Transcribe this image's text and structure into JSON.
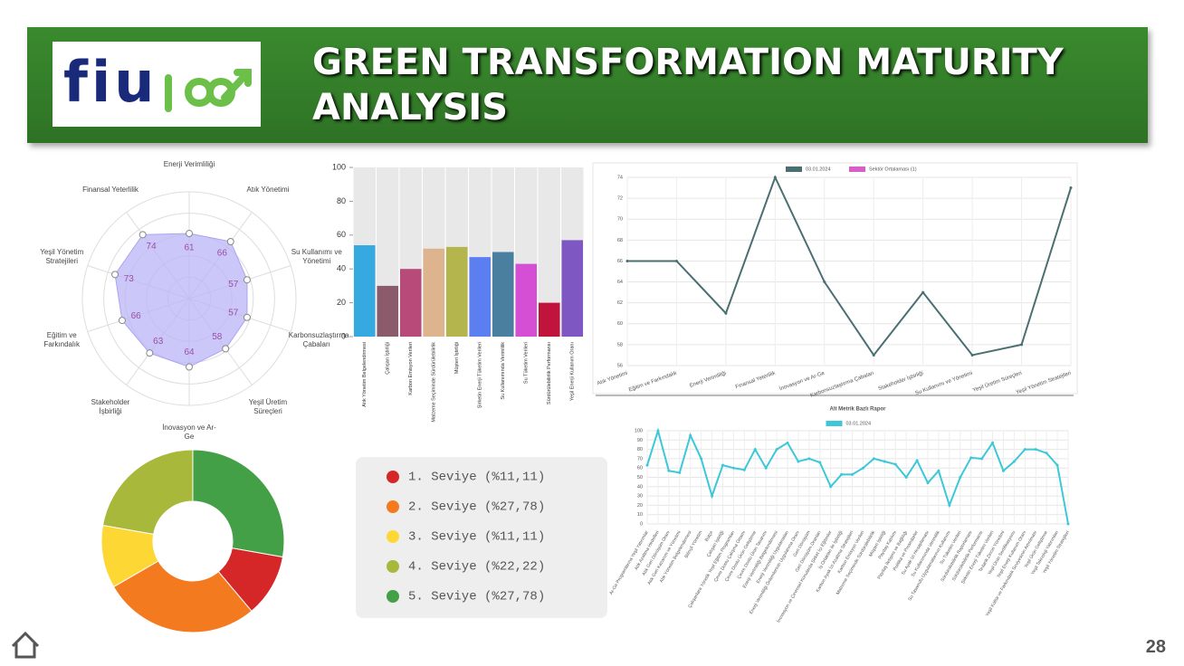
{
  "header": {
    "logo": "fiu",
    "title": "GREEN TRANSFORMATION MATURITY ANALYSIS"
  },
  "page_number": "28",
  "chart_data": [
    {
      "type": "radar",
      "categories": [
        "Enerji Verimliliği",
        "Atık Yönetimi",
        "Su Kullanımı ve Yönetimi",
        "Karbonsuzlaştırma Çabaları",
        "Yeşil Üretim Süreçleri",
        "İnovasyon ve Ar-Ge",
        "Stakeholder İşbirliği",
        "Eğitim ve Farkındalık",
        "Yeşil Yönetim Stratejileri",
        "Finansal Yeterlilik"
      ],
      "values": [
        61,
        66,
        57,
        57,
        58,
        64,
        63,
        66,
        73,
        74
      ],
      "color": "#b9b6f7",
      "rlim": [
        0,
        100
      ]
    },
    {
      "type": "bar",
      "categories": [
        "Atık Yönetim Belgelendirmesi",
        "Çalışan İştirliği",
        "Karbon Emisyon Verileri",
        "Malzeme Seçiminde Sürdürülebilirlik",
        "Müşteri İştirliği",
        "Şirketin Enerji Tüketim Verileri",
        "Su Kullanımında Verimlilik",
        "Su Tüketim Verileri",
        "Sürdürülebilirlik Performansı",
        "Yeşil Enerji Kullanım Oranı"
      ],
      "values": [
        54,
        30,
        40,
        52,
        53,
        47,
        50,
        43,
        20,
        57
      ],
      "colors": [
        "#36a9e1",
        "#8b5a6b",
        "#b84a7a",
        "#deb48e",
        "#b5b54e",
        "#5b7ff0",
        "#4a7fa0",
        "#d44fd4",
        "#c0143c",
        "#7e57c2"
      ],
      "ylim": [
        0,
        100
      ],
      "yticks": [
        0,
        20,
        40,
        60,
        80,
        100
      ]
    },
    {
      "type": "line",
      "categories": [
        "Atık Yönetimi",
        "Eğitim ve Farkındalık",
        "Enerji Verimliliği",
        "Finansal Yeterlilik",
        "İnovasyon ve Ar-Ge",
        "Karbonsuzlaştırma Çabaları",
        "Stakeholder İşbirliği",
        "Su Kullanımı ve Yönetimi",
        "Yeşil Üretim Süreçleri",
        "Yeşil Yönetim Stratejileri"
      ],
      "series": [
        {
          "name": "03.01.2024",
          "color": "#4a6f72",
          "values": [
            66,
            66,
            61,
            74,
            64,
            57,
            63,
            57,
            58,
            73
          ]
        },
        {
          "name": "Sektör Ortalaması (1)",
          "color": "#d660c8",
          "values": [
            null,
            null,
            null,
            null,
            null,
            null,
            null,
            null,
            null,
            null
          ]
        }
      ],
      "ylim": [
        56,
        74
      ],
      "yticks": [
        56,
        58,
        60,
        62,
        64,
        66,
        68,
        70,
        72,
        74
      ],
      "grid": true
    },
    {
      "type": "line",
      "title": "Alt Metrik Bazlı Rapor",
      "categories": [
        "Ar-Ge Programlarına Yeşil Yatırımlar",
        "Atık Azaltma Hedefleri",
        "Atık Geri Dönüşüm Oranı",
        "Atık Geri Kazanım ve Yönetimi",
        "Atık Yönetim Belgelendirmesi",
        "Bilinçli Yönetim",
        "Bütçe",
        "Çalışan İştirliği",
        "Çalışanlara Yönelik Yeşil Eğitim Programları",
        "Çevre Dostu Çalışma Ortamı",
        "Çevre Dostu Ürün Geliştirme",
        "Çevre Dostu Ürün Tasarımı",
        "Enerji Verimliliği Belgelendirmesi",
        "Enerji Verimliliği Uygulamaları",
        "Enerji Verimliliği Önlemlerinin Uygulanma Oranı",
        "Geri Dönüşüm",
        "Geri Dönüşüm Oranları",
        "İnovasyon ve Çevresel Konularda Şirket İçi Eğitimler",
        "İş Ortakları ile İşbirliği",
        "Karbon Ayak İzi Azaltma Stratejileri",
        "Karbon Emisyon Verileri",
        "Malzeme Seçiminde Sürdürülebilirlik",
        "Müşteri İştirliği",
        "Paydaş Katılımı",
        "Paydaş İletişimi ve Bağlılığı",
        "Politika ve Prosedürler",
        "Su Ayak İzi Hesaplaması",
        "Su Kullanımında Verimlilik",
        "Su Tasarrufu Uygulamalarının Kullanımı",
        "Su Tüketim Verileri",
        "Sürdürülebilirlik Raporlaması",
        "Sürdürülebilirlik Performansı",
        "Şirketin Enerji Tüketim Verileri",
        "Tedarik Zinciri Yönetimi",
        "Yeşil Ürün Sertifikasyonu",
        "Yeşil Enerji Kullanım Oranı",
        "Yeşil Kültür ve Farkındalık Seviyesinin Artırılması",
        "Yeşil Ürün Geliştirme",
        "Yeşil Teknoloji Yatırımları",
        "Yeşil Yönetim Stratejileri"
      ],
      "series": [
        {
          "name": "03.01.2024",
          "color": "#3cc8d8",
          "values": [
            63,
            100,
            57,
            55,
            95,
            70,
            30,
            63,
            60,
            58,
            80,
            60,
            80,
            87,
            67,
            70,
            66,
            40,
            53,
            53,
            60,
            70,
            67,
            64,
            50,
            68,
            44,
            57,
            20,
            50,
            71,
            70,
            87,
            57,
            67,
            80,
            80,
            76,
            63,
            0
          ]
        }
      ],
      "ylim": [
        0,
        100
      ],
      "yticks": [
        0,
        10,
        20,
        30,
        40,
        50,
        60,
        70,
        80,
        90,
        100
      ],
      "grid": true
    },
    {
      "type": "doughnut",
      "categories": [
        "1. Seviye (%11,11)",
        "2. Seviye (%27,78)",
        "3. Seviye (%11,11)",
        "4. Seviye (%22,22)",
        "5. Seviye (%27,78)"
      ],
      "values": [
        11.11,
        27.78,
        11.11,
        22.22,
        27.78
      ],
      "colors": [
        "#d62728",
        "#f47a20",
        "#fdd835",
        "#a8b83a",
        "#43a047"
      ]
    }
  ]
}
